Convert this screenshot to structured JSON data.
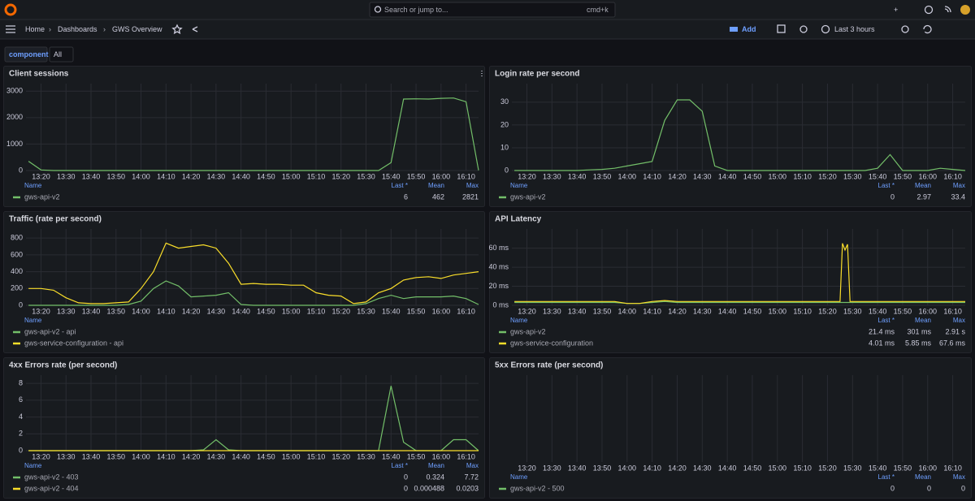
{
  "topbar": {
    "search": "Search or jump to...",
    "shortcut": "cmd+k"
  },
  "navbar": {
    "breadcrumbs": [
      "Home",
      "Dashboards",
      "GWS Overview"
    ],
    "add": "Add",
    "time_range": "Last 3 hours"
  },
  "variables": {
    "label": "component",
    "value": "All"
  },
  "panels": [
    {
      "title": "Client sessions",
      "type": "line",
      "xlim": [
        "13:14",
        "16:15"
      ],
      "ylim": [
        0,
        3100
      ],
      "yticks": [
        0,
        1000,
        2000,
        3000
      ],
      "xticks": [
        "13:20",
        "13:30",
        "13:40",
        "13:50",
        "14:00",
        "14:10",
        "14:20",
        "14:30",
        "14:40",
        "14:50",
        "15:00",
        "15:10",
        "15:20",
        "15:30",
        "15:40",
        "15:50",
        "16:00",
        "16:10"
      ],
      "x": [
        "13:15",
        "13:20",
        "13:25",
        "13:30",
        "13:35",
        "13:40",
        "13:45",
        "13:50",
        "13:55",
        "14:00",
        "14:05",
        "14:10",
        "14:15",
        "14:20",
        "14:25",
        "14:30",
        "14:35",
        "14:40",
        "14:45",
        "14:50",
        "14:55",
        "15:00",
        "15:05",
        "15:10",
        "15:15",
        "15:20",
        "15:25",
        "15:30",
        "15:35",
        "15:40",
        "15:45",
        "15:50",
        "15:55",
        "16:00",
        "16:05",
        "16:10",
        "16:15"
      ],
      "legend_headers": [
        "Name",
        "Last *",
        "Mean",
        "Max"
      ],
      "series": [
        {
          "name": "gws-api-v2",
          "color": "#73bf69",
          "values": [
            350,
            20,
            0,
            0,
            0,
            0,
            0,
            0,
            0,
            0,
            0,
            0,
            0,
            0,
            0,
            0,
            0,
            0,
            0,
            0,
            0,
            0,
            0,
            0,
            0,
            0,
            0,
            0,
            0,
            300,
            2700,
            2710,
            2700,
            2730,
            2740,
            2600,
            6
          ],
          "stats": [
            "6",
            "462",
            "2821"
          ]
        }
      ]
    },
    {
      "title": "Login rate per second",
      "type": "line",
      "xlim": [
        "13:14",
        "16:15"
      ],
      "ylim": [
        0,
        36
      ],
      "yticks": [
        0,
        10,
        20,
        30
      ],
      "xticks": [
        "13:20",
        "13:30",
        "13:40",
        "13:50",
        "14:00",
        "14:10",
        "14:20",
        "14:30",
        "14:40",
        "14:50",
        "15:00",
        "15:10",
        "15:20",
        "15:30",
        "15:40",
        "15:50",
        "16:00",
        "16:10"
      ],
      "x": [
        "13:15",
        "13:20",
        "13:25",
        "13:30",
        "13:35",
        "13:40",
        "13:45",
        "13:50",
        "13:55",
        "14:00",
        "14:05",
        "14:10",
        "14:15",
        "14:20",
        "14:25",
        "14:30",
        "14:35",
        "14:40",
        "14:45",
        "14:50",
        "14:55",
        "15:00",
        "15:05",
        "15:10",
        "15:15",
        "15:20",
        "15:25",
        "15:30",
        "15:35",
        "15:40",
        "15:45",
        "15:50",
        "15:55",
        "16:00",
        "16:05",
        "16:10",
        "16:15"
      ],
      "legend_headers": [
        "Name",
        "Last *",
        "Mean",
        "Max"
      ],
      "series": [
        {
          "name": "gws-api-v2",
          "color": "#73bf69",
          "values": [
            0,
            0,
            0,
            0,
            0,
            0,
            0.3,
            0.5,
            1,
            2,
            3,
            4,
            22,
            31,
            31,
            26,
            2,
            0,
            0,
            0,
            0,
            0,
            0,
            0,
            0,
            0,
            0,
            0,
            0,
            1,
            7,
            0,
            0,
            0,
            1,
            0.5,
            0
          ],
          "stats": [
            "0",
            "2.97",
            "33.4"
          ]
        }
      ]
    },
    {
      "title": "Traffic (rate per second)",
      "type": "line",
      "xlim": [
        "13:14",
        "16:15"
      ],
      "ylim": [
        0,
        850
      ],
      "yticks": [
        0,
        200,
        400,
        600,
        800
      ],
      "xticks": [
        "13:20",
        "13:30",
        "13:40",
        "13:50",
        "14:00",
        "14:10",
        "14:20",
        "14:30",
        "14:40",
        "14:50",
        "15:00",
        "15:10",
        "15:20",
        "15:30",
        "15:40",
        "15:50",
        "16:00",
        "16:10"
      ],
      "x": [
        "13:15",
        "13:20",
        "13:25",
        "13:30",
        "13:35",
        "13:40",
        "13:45",
        "13:50",
        "13:55",
        "14:00",
        "14:05",
        "14:10",
        "14:15",
        "14:20",
        "14:25",
        "14:30",
        "14:35",
        "14:40",
        "14:45",
        "14:50",
        "14:55",
        "15:00",
        "15:05",
        "15:10",
        "15:15",
        "15:20",
        "15:25",
        "15:30",
        "15:35",
        "15:40",
        "15:45",
        "15:50",
        "15:55",
        "16:00",
        "16:05",
        "16:10",
        "16:15"
      ],
      "legend_headers": [
        "Name"
      ],
      "series": [
        {
          "name": "gws-api-v2 - api",
          "color": "#73bf69",
          "values": [
            0,
            0,
            0,
            0,
            0,
            0,
            0,
            0,
            10,
            50,
            200,
            290,
            230,
            100,
            110,
            120,
            150,
            10,
            0,
            0,
            0,
            0,
            0,
            0,
            0,
            0,
            0,
            20,
            80,
            120,
            80,
            100,
            100,
            100,
            110,
            80,
            10
          ]
        },
        {
          "name": "gws-service-configuration - api",
          "color": "#fade2a",
          "values": [
            200,
            200,
            180,
            90,
            30,
            20,
            20,
            30,
            40,
            200,
            400,
            740,
            680,
            700,
            720,
            680,
            500,
            250,
            260,
            250,
            250,
            240,
            240,
            150,
            120,
            110,
            20,
            40,
            150,
            200,
            300,
            330,
            340,
            320,
            360,
            380,
            400
          ]
        }
      ]
    },
    {
      "title": "API Latency",
      "type": "line",
      "xlim": [
        "13:14",
        "16:15"
      ],
      "ylim": [
        0,
        75
      ],
      "yticks": [
        {
          "value": 0,
          "label": "0 ms"
        },
        {
          "value": 20,
          "label": "20 ms"
        },
        {
          "value": 40,
          "label": "40 ms"
        },
        {
          "value": 60,
          "label": "60 ms"
        }
      ],
      "xticks": [
        "13:20",
        "13:30",
        "13:40",
        "13:50",
        "14:00",
        "14:10",
        "14:20",
        "14:30",
        "14:40",
        "14:50",
        "15:00",
        "15:10",
        "15:20",
        "15:30",
        "15:40",
        "15:50",
        "16:00",
        "16:10"
      ],
      "x": [
        "13:15",
        "13:20",
        "13:25",
        "13:30",
        "13:35",
        "13:40",
        "13:45",
        "13:50",
        "13:55",
        "14:00",
        "14:05",
        "14:10",
        "14:15",
        "14:20",
        "14:25",
        "14:30",
        "14:35",
        "14:40",
        "14:45",
        "14:50",
        "14:55",
        "15:00",
        "15:05",
        "15:10",
        "15:15",
        "15:20",
        "15:25",
        "15:30",
        "15:35",
        "15:40",
        "15:45",
        "15:50",
        "15:55",
        "16:00",
        "16:05",
        "16:10",
        "16:15"
      ],
      "legend_headers": [
        "Name",
        "Last *",
        "Mean",
        "Max"
      ],
      "series": [
        {
          "name": "gws-api-v2",
          "color": "#73bf69",
          "values": [
            3,
            3,
            3,
            3,
            3,
            3,
            3,
            3,
            3,
            2,
            2,
            3,
            4,
            3,
            3,
            3,
            3,
            3,
            3,
            3,
            3,
            3,
            3,
            3,
            3,
            3,
            3,
            3,
            3,
            3,
            3,
            3,
            3,
            3,
            3,
            3,
            3
          ],
          "stats": [
            "21.4 ms",
            "301 ms",
            "2.91 s"
          ]
        },
        {
          "name": "gws-service-configuration",
          "color": "#fade2a",
          "x": [
            "13:15",
            "13:20",
            "13:25",
            "13:30",
            "13:35",
            "13:40",
            "13:45",
            "13:50",
            "13:55",
            "14:00",
            "14:05",
            "14:10",
            "14:15",
            "14:20",
            "14:25",
            "14:30",
            "14:35",
            "14:40",
            "14:45",
            "14:50",
            "14:55",
            "15:00",
            "15:05",
            "15:10",
            "15:15",
            "15:20",
            "15:25",
            "15:26",
            "15:27",
            "15:28",
            "15:29",
            "15:30",
            "15:35",
            "15:40",
            "15:45",
            "15:50",
            "15:55",
            "16:00",
            "16:05",
            "16:10",
            "16:15"
          ],
          "values": [
            4,
            4,
            4,
            4,
            4,
            4,
            4,
            4,
            4,
            2,
            2,
            4,
            5,
            4,
            4,
            4,
            4,
            4,
            4,
            4,
            4,
            4,
            4,
            4,
            4,
            4,
            4,
            65,
            58,
            64,
            4,
            4,
            4,
            4,
            4,
            4,
            4,
            4,
            4,
            4,
            4
          ],
          "stats": [
            "4.01 ms",
            "5.85 ms",
            "67.6 ms"
          ]
        }
      ]
    },
    {
      "title": "4xx Errors rate (per second)",
      "type": "line",
      "xlim": [
        "13:14",
        "16:15"
      ],
      "ylim": [
        0,
        8.4
      ],
      "yticks": [
        0,
        2,
        4,
        6,
        8
      ],
      "xticks": [
        "13:20",
        "13:30",
        "13:40",
        "13:50",
        "14:00",
        "14:10",
        "14:20",
        "14:30",
        "14:40",
        "14:50",
        "15:00",
        "15:10",
        "15:20",
        "15:30",
        "15:40",
        "15:50",
        "16:00",
        "16:10"
      ],
      "x": [
        "13:15",
        "13:20",
        "13:25",
        "13:30",
        "13:35",
        "13:40",
        "13:45",
        "13:50",
        "13:55",
        "14:00",
        "14:05",
        "14:10",
        "14:15",
        "14:20",
        "14:25",
        "14:30",
        "14:35",
        "14:40",
        "14:45",
        "14:50",
        "14:55",
        "15:00",
        "15:05",
        "15:10",
        "15:15",
        "15:20",
        "15:25",
        "15:30",
        "15:35",
        "15:40",
        "15:45",
        "15:50",
        "15:55",
        "16:00",
        "16:05",
        "16:10",
        "16:15"
      ],
      "legend_headers": [
        "Name",
        "Last *",
        "Mean",
        "Max"
      ],
      "series": [
        {
          "name": "gws-api-v2 - 403",
          "color": "#73bf69",
          "values": [
            0,
            0,
            0,
            0,
            0,
            0,
            0,
            0,
            0,
            0,
            0,
            0,
            0,
            0,
            0.1,
            1.3,
            0.1,
            0,
            0,
            0,
            0,
            0,
            0,
            0,
            0,
            0,
            0,
            0,
            0,
            7.7,
            1,
            0,
            0,
            0,
            1.3,
            1.3,
            0
          ],
          "stats": [
            "0",
            "0.324",
            "7.72"
          ]
        },
        {
          "name": "gws-api-v2 - 404",
          "color": "#fade2a",
          "values": [
            0,
            0,
            0,
            0,
            0,
            0,
            0,
            0,
            0,
            0,
            0,
            0,
            0,
            0,
            0,
            0,
            0,
            0,
            0,
            0,
            0,
            0,
            0,
            0,
            0,
            0,
            0,
            0,
            0,
            0,
            0,
            0,
            0,
            0,
            0,
            0,
            0
          ],
          "stats": [
            "0",
            "0.000488",
            "0.0203"
          ]
        }
      ]
    },
    {
      "title": "5xx Errors rate (per second)",
      "type": "line",
      "xlim": [
        "13:14",
        "16:15"
      ],
      "xticks": [
        "13:20",
        "13:30",
        "13:40",
        "13:50",
        "14:00",
        "14:10",
        "14:20",
        "14:30",
        "14:40",
        "14:50",
        "15:00",
        "15:10",
        "15:20",
        "15:30",
        "15:40",
        "15:50",
        "16:00",
        "16:10"
      ],
      "legend_headers": [
        "Name",
        "Last *",
        "Mean",
        "Max"
      ],
      "series": [
        {
          "name": "gws-api-v2 - 500",
          "color": "#73bf69",
          "stats": [
            "0",
            "0",
            "0"
          ]
        }
      ]
    }
  ]
}
